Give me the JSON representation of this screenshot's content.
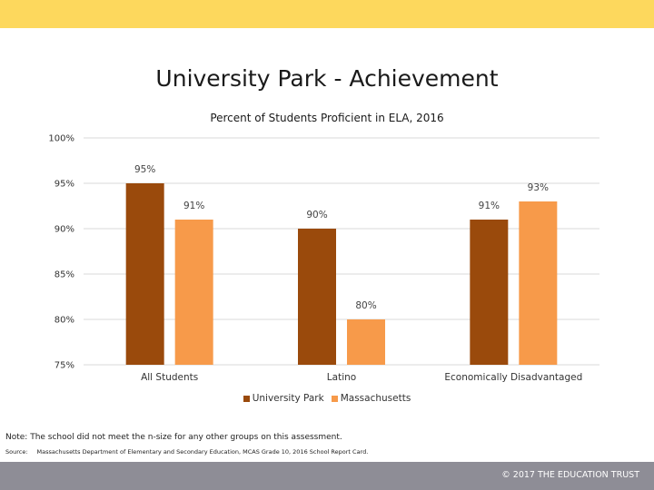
{
  "theme": {
    "top_band_color": "#fdd85d",
    "bottom_band_color": "#8e8d96",
    "series_colors": [
      "#9a4a0c",
      "#f79a4a"
    ]
  },
  "slide": {
    "title": "University Park - Achievement",
    "note": "Note: The school did not meet the n-size for any other groups on this assessment.",
    "source_label": "Source:",
    "source_text": "Massachusetts Department of Elementary and Secondary Education, MCAS Grade 10, 2016 School Report Card.",
    "copyright": "© 2017 THE EDUCATION TRUST"
  },
  "chart_data": {
    "type": "bar",
    "title": "Percent of Students Proficient in ELA, 2016",
    "categories": [
      "All Students",
      "Latino",
      "Economically Disadvantaged"
    ],
    "series": [
      {
        "name": "University Park",
        "values": [
          95,
          90,
          91
        ],
        "labels": [
          "95%",
          "90%",
          "91%"
        ]
      },
      {
        "name": "Massachusetts",
        "values": [
          91,
          80,
          93
        ],
        "labels": [
          "91%",
          "80%",
          "93%"
        ]
      }
    ],
    "ylim": [
      75,
      100
    ],
    "yticks": [
      {
        "value": 75,
        "label": "75%"
      },
      {
        "value": 80,
        "label": "80%"
      },
      {
        "value": 85,
        "label": "85%"
      },
      {
        "value": 90,
        "label": "90%"
      },
      {
        "value": 95,
        "label": "95%"
      },
      {
        "value": 100,
        "label": "100%"
      }
    ],
    "grid": true,
    "legend_position": "bottom"
  }
}
